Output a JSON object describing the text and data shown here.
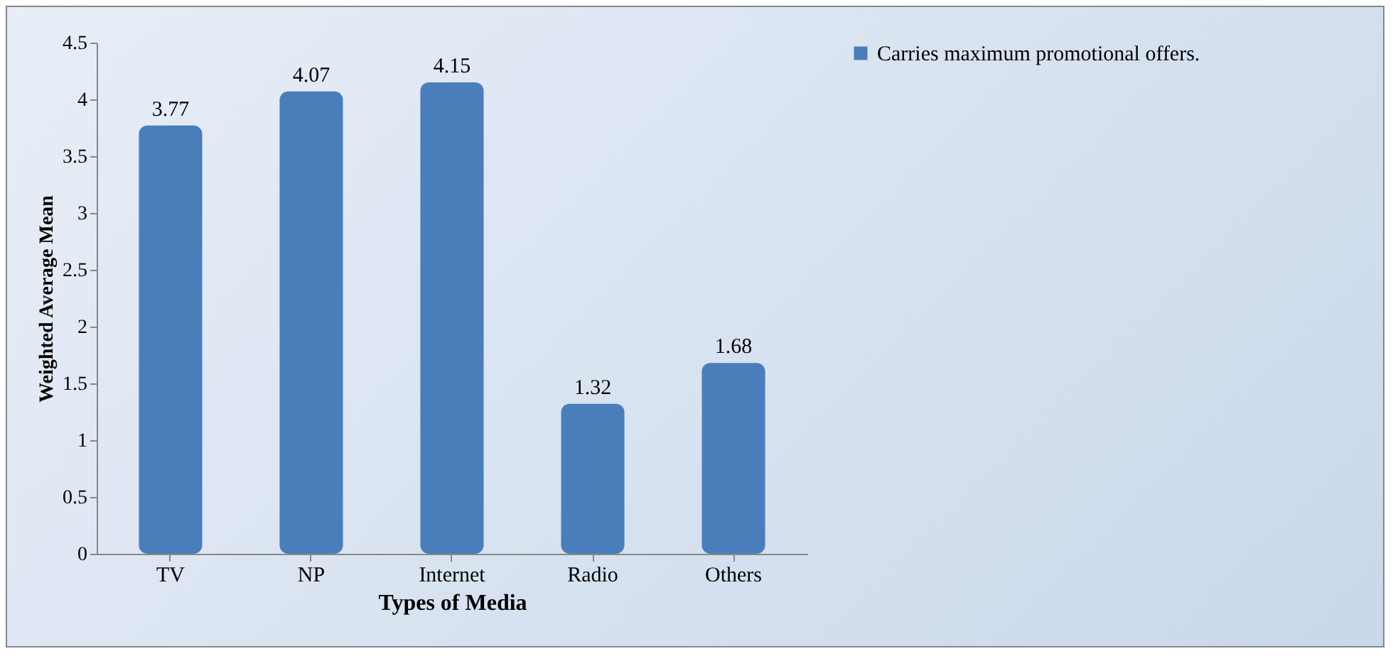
{
  "chart_data": {
    "type": "bar",
    "xlabel": "Types of Media",
    "ylabel": "Weighted Average Mean",
    "categories": [
      "TV",
      "NP",
      "Internet",
      "Radio",
      "Others"
    ],
    "series": [
      {
        "name": "Carries maximum promotional offers.",
        "color": "#4a7ebb",
        "values": [
          3.77,
          4.07,
          4.15,
          1.32,
          1.68
        ]
      }
    ],
    "ylim": [
      0,
      4.5
    ],
    "yticks": [
      0,
      0.5,
      1,
      1.5,
      2,
      2.5,
      3,
      3.5,
      4,
      4.5
    ],
    "data_labels": true,
    "legend": "right",
    "grid": false
  }
}
